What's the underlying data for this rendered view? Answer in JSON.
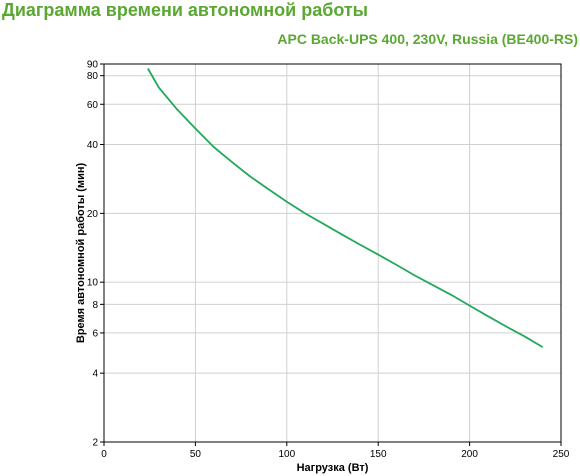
{
  "header": {
    "title": "Диаграмма времени автономной работы",
    "subtitle": "APC Back-UPS 400, 230V, Russia (BE400-RS)"
  },
  "colors": {
    "title": "#5aa832",
    "series": "#22a95a",
    "grid": "#d0d0d0",
    "axis": "#000000"
  },
  "chart_data": {
    "type": "line",
    "xlabel": "Нагрузка (Вт)",
    "ylabel": "Время автономной работы (мин)",
    "x_scale": "linear",
    "y_scale": "log",
    "xlim": [
      0,
      250
    ],
    "ylim": [
      2,
      90
    ],
    "x_ticks": [
      0,
      50,
      100,
      150,
      200,
      250
    ],
    "y_ticks": [
      2,
      4,
      6,
      8,
      10,
      20,
      40,
      60,
      80,
      90
    ],
    "grid": true,
    "series": [
      {
        "x": [
          24,
          30,
          40,
          50,
          60,
          70,
          80,
          90,
          100,
          110,
          120,
          130,
          140,
          150,
          160,
          170,
          180,
          190,
          200,
          210,
          220,
          230,
          240
        ],
        "y": [
          86,
          71,
          57,
          47,
          39,
          33.5,
          29,
          25.5,
          22.5,
          20,
          18,
          16.2,
          14.6,
          13.2,
          11.9,
          10.7,
          9.7,
          8.8,
          7.9,
          7.1,
          6.4,
          5.8,
          5.2
        ]
      }
    ]
  }
}
